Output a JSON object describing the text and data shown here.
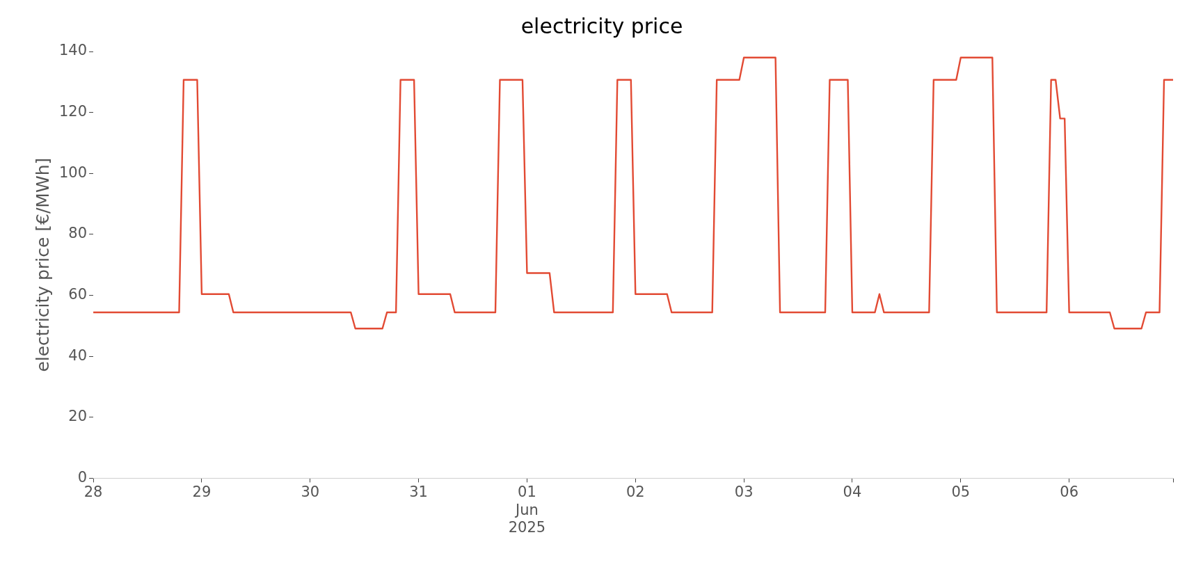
{
  "chart_data": {
    "type": "line",
    "title": "electricity price",
    "ylabel": "electricity price [€/MWh]",
    "x": [
      "2025-05-28T00:00",
      "2025-05-28T19:00",
      "2025-05-28T20:00",
      "2025-05-28T23:00",
      "2025-05-29T00:00",
      "2025-05-29T06:00",
      "2025-05-29T07:00",
      "2025-05-30T09:00",
      "2025-05-30T10:00",
      "2025-05-30T16:00",
      "2025-05-30T17:00",
      "2025-05-30T19:00",
      "2025-05-30T20:00",
      "2025-05-30T23:00",
      "2025-05-31T00:00",
      "2025-05-31T07:00",
      "2025-05-31T08:00",
      "2025-05-31T17:00",
      "2025-05-31T18:00",
      "2025-05-31T23:00",
      "2025-06-01T00:00",
      "2025-06-01T05:00",
      "2025-06-01T06:00",
      "2025-06-01T19:00",
      "2025-06-01T20:00",
      "2025-06-01T23:00",
      "2025-06-02T00:00",
      "2025-06-02T07:00",
      "2025-06-02T08:00",
      "2025-06-02T17:00",
      "2025-06-02T18:00",
      "2025-06-02T23:00",
      "2025-06-03T00:00",
      "2025-06-03T07:00",
      "2025-06-03T08:00",
      "2025-06-03T18:00",
      "2025-06-03T19:00",
      "2025-06-03T23:00",
      "2025-06-04T00:00",
      "2025-06-04T05:00",
      "2025-06-04T06:00",
      "2025-06-04T07:00",
      "2025-06-04T17:00",
      "2025-06-04T18:00",
      "2025-06-04T23:00",
      "2025-06-05T00:00",
      "2025-06-05T07:00",
      "2025-06-05T08:00",
      "2025-06-05T19:00",
      "2025-06-05T20:00",
      "2025-06-05T21:00",
      "2025-06-05T22:00",
      "2025-06-05T23:00",
      "2025-06-06T00:00",
      "2025-06-06T09:00",
      "2025-06-06T10:00",
      "2025-06-06T16:00",
      "2025-06-06T17:00",
      "2025-06-06T20:00",
      "2025-06-06T21:00",
      "2025-06-06T23:00"
    ],
    "series": [
      {
        "color": "#e24a33",
        "values": [
          54.4,
          54.4,
          130.7,
          130.7,
          60.4,
          60.4,
          54.4,
          54.4,
          49.1,
          49.1,
          54.4,
          54.4,
          130.7,
          130.7,
          60.4,
          60.4,
          54.4,
          54.4,
          130.7,
          130.7,
          67.3,
          67.3,
          54.4,
          54.4,
          130.7,
          130.7,
          60.4,
          60.4,
          54.4,
          54.4,
          130.7,
          130.7,
          138,
          138,
          54.4,
          54.4,
          130.7,
          130.7,
          54.4,
          54.4,
          60.4,
          54.4,
          54.4,
          130.7,
          130.7,
          138,
          138,
          54.4,
          54.4,
          130.7,
          130.7,
          118,
          118,
          54.4,
          54.4,
          49.1,
          49.1,
          54.4,
          54.4,
          130.7,
          130.7
        ]
      }
    ],
    "xlim": [
      "2025-05-28T00:00",
      "2025-06-06T23:00"
    ],
    "xticks": [
      {
        "value": "2025-05-28",
        "label": "28"
      },
      {
        "value": "2025-05-29",
        "label": "29"
      },
      {
        "value": "2025-05-30",
        "label": "30"
      },
      {
        "value": "2025-05-31",
        "label": "31"
      },
      {
        "value": "2025-06-01",
        "label": "01\nJun\n2025"
      },
      {
        "value": "2025-06-02",
        "label": "02"
      },
      {
        "value": "2025-06-03",
        "label": "03"
      },
      {
        "value": "2025-06-04",
        "label": "04"
      },
      {
        "value": "2025-06-05",
        "label": "05"
      },
      {
        "value": "2025-06-06",
        "label": "06"
      },
      {
        "value": "2025-06-06T23:00",
        "label": null
      }
    ],
    "ylim": [
      0,
      140
    ],
    "yticks": [
      0,
      20,
      40,
      60,
      80,
      100,
      120,
      140
    ],
    "grid": false,
    "marker": "none",
    "line_style": "solid"
  }
}
